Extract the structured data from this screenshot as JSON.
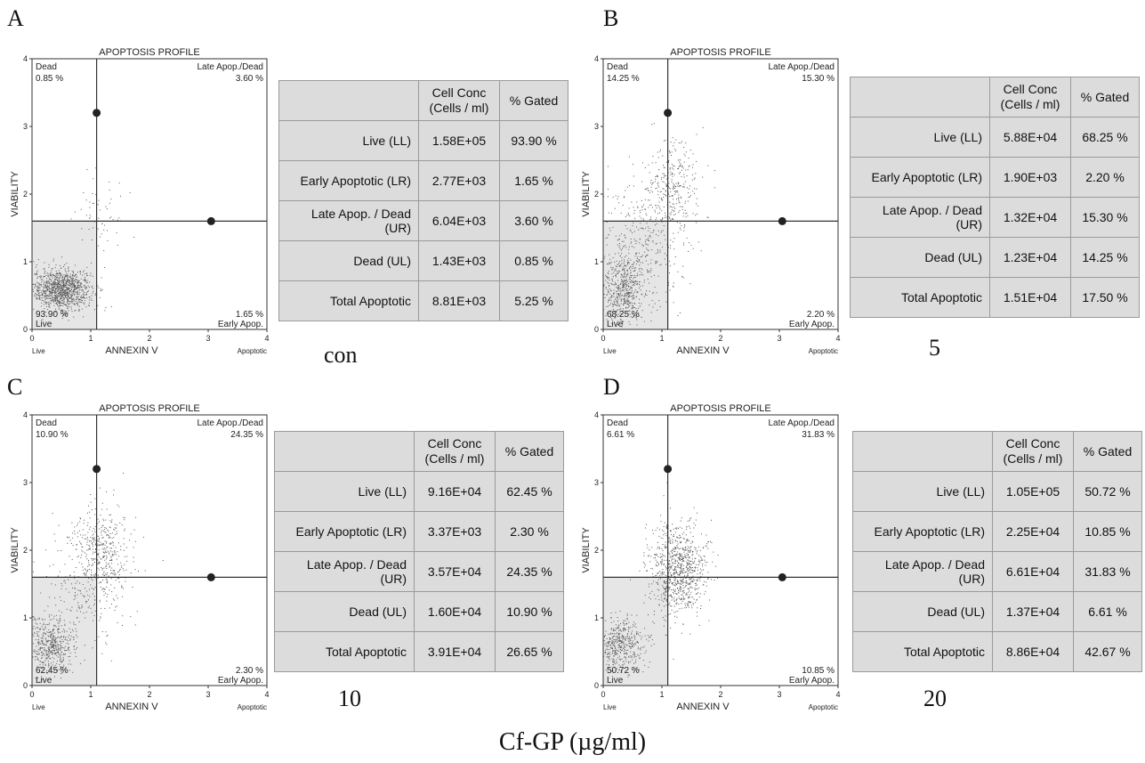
{
  "chart_data": [
    {
      "type": "scatter",
      "panel": "A",
      "title": "APOPTOSIS PROFILE",
      "xlabel": "ANNEXIN V",
      "ylabel": "VIABILITY",
      "xlim": [
        0,
        4
      ],
      "ylim": [
        0,
        4
      ],
      "xticks": [
        "0",
        "1",
        "2",
        "3",
        "4"
      ],
      "yticks": [
        "0",
        "1",
        "2",
        "3",
        "4"
      ],
      "x_left_label": "Live",
      "x_right_label": "Apoptotic",
      "quadrant_x": 1.1,
      "quadrant_y": 1.6,
      "marker_upper": [
        1.1,
        3.2
      ],
      "marker_right": [
        3.05,
        1.6
      ],
      "quadrants": {
        "ul_label": "Dead",
        "ul_value": "0.85 %",
        "ur_label": "Late Apop./Dead",
        "ur_value": "3.60 %",
        "ll_label": "Live",
        "ll_value": "93.90 %",
        "lr_label": "Early Apop.",
        "lr_value": "1.65 %"
      },
      "clusters": [
        {
          "cx": 0.5,
          "cy": 0.6,
          "sx": 0.25,
          "sy": 0.15,
          "n": 1100
        },
        {
          "cx": 1.2,
          "cy": 1.7,
          "sx": 0.25,
          "sy": 0.35,
          "n": 60
        }
      ],
      "condition": "con",
      "table": {
        "headers": [
          "",
          "Cell Conc\n(Cells / ml)",
          "% Gated"
        ],
        "rows": [
          {
            "label": "Live (LL)",
            "conc": "1.58E+05",
            "pct": "93.90 %"
          },
          {
            "label": "Early Apoptotic (LR)",
            "conc": "2.77E+03",
            "pct": "1.65 %"
          },
          {
            "label": "Late Apop. / Dead (UR)",
            "conc": "6.04E+03",
            "pct": "3.60 %"
          },
          {
            "label": "Dead (UL)",
            "conc": "1.43E+03",
            "pct": "0.85 %"
          },
          {
            "label": "Total Apoptotic",
            "conc": "8.81E+03",
            "pct": "5.25 %"
          }
        ]
      }
    },
    {
      "type": "scatter",
      "panel": "B",
      "title": "APOPTOSIS PROFILE",
      "xlabel": "ANNEXIN V",
      "ylabel": "VIABILITY",
      "xlim": [
        0,
        4
      ],
      "ylim": [
        0,
        4
      ],
      "xticks": [
        "0",
        "1",
        "2",
        "3",
        "4"
      ],
      "yticks": [
        "0",
        "1",
        "2",
        "3",
        "4"
      ],
      "x_left_label": "Live",
      "x_right_label": "Apoptotic",
      "quadrant_x": 1.1,
      "quadrant_y": 1.6,
      "marker_upper": [
        1.1,
        3.2
      ],
      "marker_right": [
        3.05,
        1.6
      ],
      "quadrants": {
        "ul_label": "Dead",
        "ul_value": "14.25 %",
        "ur_label": "Late Apop./Dead",
        "ur_value": "15.30 %",
        "ll_label": "Live",
        "ll_value": "68.25 %",
        "lr_label": "Early Apop.",
        "lr_value": "2.20 %"
      },
      "clusters": [
        {
          "cx": 0.3,
          "cy": 0.6,
          "sx": 0.2,
          "sy": 0.25,
          "n": 500
        },
        {
          "cx": 0.6,
          "cy": 1.2,
          "sx": 0.4,
          "sy": 0.5,
          "n": 400
        },
        {
          "cx": 1.2,
          "cy": 2.1,
          "sx": 0.25,
          "sy": 0.35,
          "n": 300
        }
      ],
      "condition": "5",
      "table": {
        "headers": [
          "",
          "Cell Conc\n(Cells / ml)",
          "% Gated"
        ],
        "rows": [
          {
            "label": "Live (LL)",
            "conc": "5.88E+04",
            "pct": "68.25 %"
          },
          {
            "label": "Early Apoptotic (LR)",
            "conc": "1.90E+03",
            "pct": "2.20 %"
          },
          {
            "label": "Late Apop. / Dead (UR)",
            "conc": "1.32E+04",
            "pct": "15.30 %"
          },
          {
            "label": "Dead (UL)",
            "conc": "1.23E+04",
            "pct": "14.25 %"
          },
          {
            "label": "Total Apoptotic",
            "conc": "1.51E+04",
            "pct": "17.50 %"
          }
        ]
      }
    },
    {
      "type": "scatter",
      "panel": "C",
      "title": "APOPTOSIS PROFILE",
      "xlabel": "ANNEXIN V",
      "ylabel": "VIABILITY",
      "xlim": [
        0,
        4
      ],
      "ylim": [
        0,
        4
      ],
      "xticks": [
        "0",
        "1",
        "2",
        "3",
        "4"
      ],
      "yticks": [
        "0",
        "1",
        "2",
        "3",
        "4"
      ],
      "x_left_label": "Live",
      "x_right_label": "Apoptotic",
      "quadrant_x": 1.1,
      "quadrant_y": 1.6,
      "marker_upper": [
        1.1,
        3.2
      ],
      "marker_right": [
        3.05,
        1.6
      ],
      "quadrants": {
        "ul_label": "Dead",
        "ul_value": "10.90 %",
        "ur_label": "Late Apop./Dead",
        "ur_value": "24.35 %",
        "ll_label": "Live",
        "ll_value": "62.45 %",
        "lr_label": "Early Apop.",
        "lr_value": "2.30 %"
      },
      "clusters": [
        {
          "cx": 0.3,
          "cy": 0.6,
          "sx": 0.2,
          "sy": 0.22,
          "n": 500
        },
        {
          "cx": 0.8,
          "cy": 1.4,
          "sx": 0.35,
          "sy": 0.45,
          "n": 200
        },
        {
          "cx": 1.2,
          "cy": 2.0,
          "sx": 0.25,
          "sy": 0.35,
          "n": 400
        }
      ],
      "condition": "10",
      "table": {
        "headers": [
          "",
          "Cell Conc\n(Cells / ml)",
          "% Gated"
        ],
        "rows": [
          {
            "label": "Live (LL)",
            "conc": "9.16E+04",
            "pct": "62.45 %"
          },
          {
            "label": "Early Apoptotic (LR)",
            "conc": "3.37E+03",
            "pct": "2.30 %"
          },
          {
            "label": "Late Apop. / Dead (UR)",
            "conc": "3.57E+04",
            "pct": "24.35 %"
          },
          {
            "label": "Dead (UL)",
            "conc": "1.60E+04",
            "pct": "10.90 %"
          },
          {
            "label": "Total Apoptotic",
            "conc": "3.91E+04",
            "pct": "26.65 %"
          }
        ]
      }
    },
    {
      "type": "scatter",
      "panel": "D",
      "title": "APOPTOSIS PROFILE",
      "xlabel": "ANNEXIN V",
      "ylabel": "VIABILITY",
      "xlim": [
        0,
        4
      ],
      "ylim": [
        0,
        4
      ],
      "xticks": [
        "0",
        "1",
        "2",
        "3",
        "4"
      ],
      "yticks": [
        "0",
        "1",
        "2",
        "3",
        "4"
      ],
      "x_left_label": "Live",
      "x_right_label": "Apoptotic",
      "quadrant_x": 1.1,
      "quadrant_y": 1.6,
      "marker_upper": [
        1.1,
        3.2
      ],
      "marker_right": [
        3.05,
        1.6
      ],
      "quadrants": {
        "ul_label": "Dead",
        "ul_value": "6.61 %",
        "ur_label": "Late Apop./Dead",
        "ur_value": "31.83 %",
        "ll_label": "Live",
        "ll_value": "50.72 %",
        "lr_label": "Early Apop.",
        "lr_value": "10.85 %"
      },
      "clusters": [
        {
          "cx": 0.3,
          "cy": 0.6,
          "sx": 0.2,
          "sy": 0.2,
          "n": 450
        },
        {
          "cx": 1.25,
          "cy": 1.7,
          "sx": 0.25,
          "sy": 0.35,
          "n": 900
        }
      ],
      "condition": "20",
      "table": {
        "headers": [
          "",
          "Cell Conc\n(Cells / ml)",
          "% Gated"
        ],
        "rows": [
          {
            "label": "Live (LL)",
            "conc": "1.05E+05",
            "pct": "50.72 %"
          },
          {
            "label": "Early Apoptotic (LR)",
            "conc": "2.25E+04",
            "pct": "10.85 %"
          },
          {
            "label": "Late Apop. / Dead (UR)",
            "conc": "6.61E+04",
            "pct": "31.83 %"
          },
          {
            "label": "Dead (UL)",
            "conc": "1.37E+04",
            "pct": "6.61 %"
          },
          {
            "label": "Total Apoptotic",
            "conc": "8.86E+04",
            "pct": "42.67 %"
          }
        ]
      }
    }
  ],
  "x_caption": "Cf-GP (µg/ml)"
}
